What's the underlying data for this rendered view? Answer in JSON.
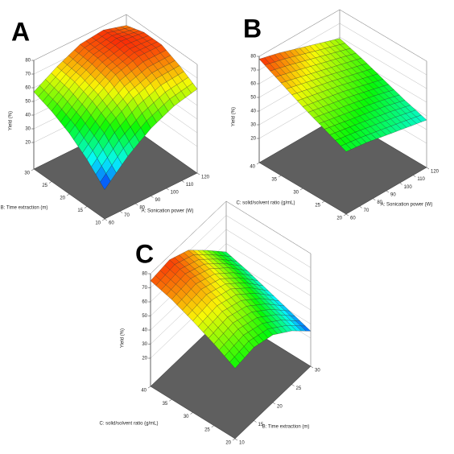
{
  "chart_data": [
    {
      "type": "surface3d",
      "label": "A",
      "xlabel": "A: Sonication power (W)",
      "ylabel": "B: Time extraction (m)",
      "zlabel": "Yield (%)",
      "xlim": [
        60,
        120
      ],
      "xticks": [
        60,
        70,
        80,
        90,
        100,
        110,
        120
      ],
      "ylim": [
        10,
        30
      ],
      "yticks": [
        10,
        15,
        20,
        25,
        30
      ],
      "zlim": [
        20,
        80
      ],
      "zticks": [
        20,
        30,
        40,
        50,
        60,
        70,
        80
      ],
      "x": [
        60,
        75,
        90,
        105,
        120
      ],
      "y": [
        10,
        15,
        20,
        25,
        30
      ],
      "z": [
        [
          22,
          38,
          50,
          58,
          62
        ],
        [
          35,
          52,
          63,
          69,
          70
        ],
        [
          45,
          60,
          71,
          76,
          76
        ],
        [
          52,
          65,
          74,
          78,
          76
        ],
        [
          57,
          67,
          75,
          77,
          72
        ]
      ]
    },
    {
      "type": "surface3d",
      "label": "B",
      "xlabel": "A: Sonication power (W)",
      "ylabel": "C: solid/solvent ratio (g/mL)",
      "zlabel": "Yield (%)",
      "xlim": [
        60,
        120
      ],
      "xticks": [
        60,
        70,
        80,
        90,
        100,
        110,
        120
      ],
      "ylim": [
        20,
        40
      ],
      "yticks": [
        20,
        25,
        30,
        35,
        40
      ],
      "zlim": [
        20,
        80
      ],
      "zticks": [
        20,
        30,
        40,
        50,
        60,
        70,
        80
      ],
      "x": [
        60,
        75,
        90,
        105,
        120
      ],
      "y": [
        20,
        25,
        30,
        35,
        40
      ],
      "z": [
        [
          48,
          46,
          43,
          40,
          37
        ],
        [
          55,
          52,
          49,
          46,
          42
        ],
        [
          62,
          59,
          56,
          52,
          48
        ],
        [
          70,
          66,
          62,
          58,
          54
        ],
        [
          78,
          74,
          69,
          64,
          59
        ]
      ]
    },
    {
      "type": "surface3d",
      "label": "C",
      "xlabel": "B: Time extraction (m)",
      "ylabel": "C: solid/solvent ratio (g/mL)",
      "zlabel": "Yield (%)",
      "xlim": [
        10,
        30
      ],
      "xticks": [
        10,
        15,
        20,
        25,
        30
      ],
      "ylim": [
        20,
        40
      ],
      "yticks": [
        20,
        25,
        30,
        35,
        40
      ],
      "zlim": [
        20,
        80
      ],
      "zticks": [
        20,
        30,
        40,
        50,
        60,
        70,
        80
      ],
      "x": [
        10,
        15,
        20,
        25,
        30
      ],
      "y": [
        20,
        25,
        30,
        35,
        40
      ],
      "z": [
        [
          50,
          52,
          48,
          38,
          25
        ],
        [
          58,
          60,
          55,
          44,
          30
        ],
        [
          65,
          67,
          62,
          50,
          35
        ],
        [
          71,
          73,
          67,
          55,
          40
        ],
        [
          75,
          77,
          71,
          58,
          44
        ]
      ]
    }
  ]
}
